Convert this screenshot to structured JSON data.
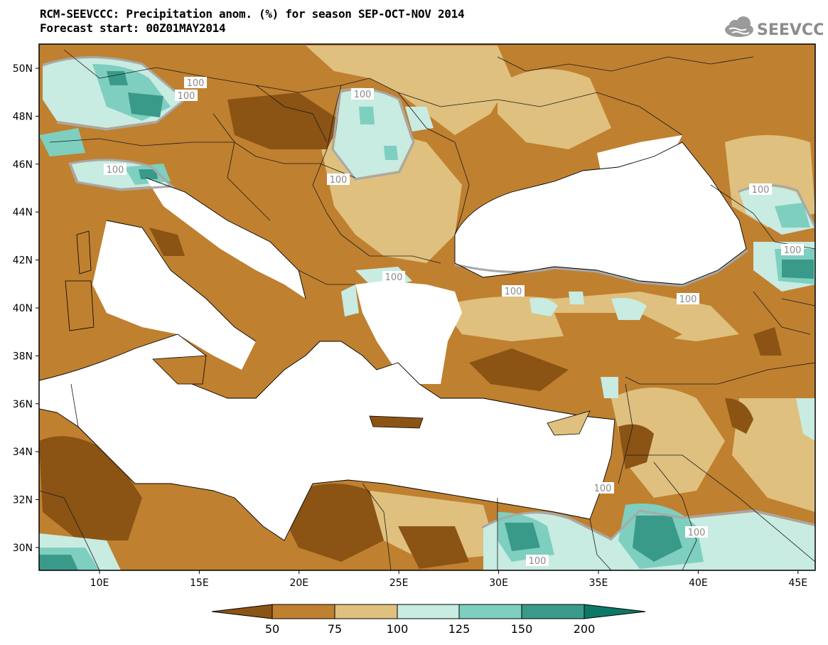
{
  "title_line1": "RCM-SEEVCCC: Precipitation anom. (%) for season SEP-OCT-NOV 2014",
  "title_line2": "Forecast start: 00Z01MAY2014",
  "logo_text": "SEEVCCC",
  "lat_labels": [
    "50N",
    "48N",
    "46N",
    "44N",
    "42N",
    "40N",
    "38N",
    "36N",
    "34N",
    "32N",
    "30N"
  ],
  "lon_labels": [
    "10E",
    "15E",
    "20E",
    "25E",
    "30E",
    "35E",
    "40E",
    "45E"
  ],
  "contour_labels": [
    "100",
    "100",
    "100",
    "100",
    "100",
    "100",
    "100",
    "100",
    "100",
    "100",
    "100",
    "100",
    "100"
  ],
  "colorbar": {
    "labels": [
      "50",
      "75",
      "100",
      "125",
      "150",
      "200"
    ],
    "colors": [
      "#8b5414",
      "#bf8030",
      "#dfc07e",
      "#c8ebe2",
      "#7ecfbf",
      "#3a9a8a",
      "#0d7868"
    ]
  },
  "palette": {
    "lt50": "#8b5414",
    "b50_75": "#bf8030",
    "b75_100": "#dfc07e",
    "b100_125": "#c8ebe2",
    "b125_150": "#7ecfbf",
    "b150_200": "#3a9a8a",
    "gt200": "#0d7868",
    "sea": "#ffffff",
    "contour100": "#a8a8a8"
  }
}
